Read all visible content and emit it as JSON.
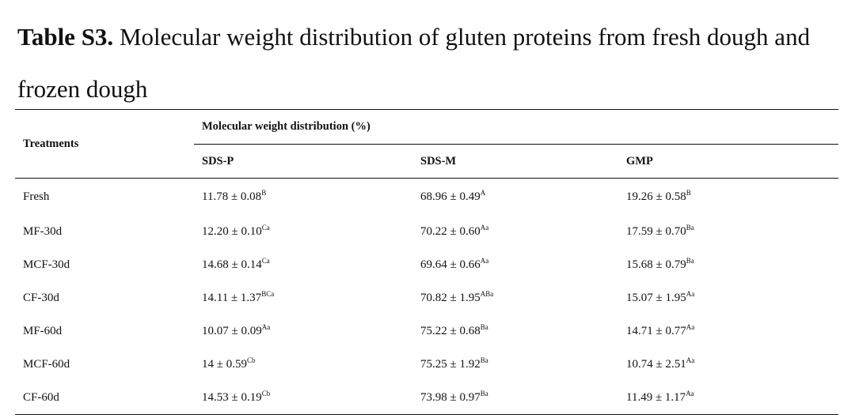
{
  "caption": {
    "label": "Table S3.",
    "text": " Molecular weight distribution of gluten proteins from fresh dough and frozen dough"
  },
  "table": {
    "row_header": "Treatments",
    "group_header": "Molecular weight distribution (%)",
    "columns": [
      "SDS-P",
      "SDS-M",
      "GMP"
    ],
    "rows": [
      {
        "treatment": "Fresh",
        "values": [
          {
            "value": "11.78 ± 0.08",
            "sup": "B"
          },
          {
            "value": "68.96 ± 0.49",
            "sup": "A"
          },
          {
            "value": "19.26 ± 0.58",
            "sup": "B"
          }
        ]
      },
      {
        "treatment": "MF-30d",
        "values": [
          {
            "value": "12.20 ± 0.10",
            "sup": "Ca"
          },
          {
            "value": "70.22 ± 0.60",
            "sup": "Aa"
          },
          {
            "value": "17.59 ± 0.70",
            "sup": "Ba"
          }
        ]
      },
      {
        "treatment": "MCF-30d",
        "values": [
          {
            "value": "14.68 ± 0.14",
            "sup": "Ca"
          },
          {
            "value": "69.64 ± 0.66",
            "sup": "Aa"
          },
          {
            "value": "15.68 ± 0.79",
            "sup": "Ba"
          }
        ]
      },
      {
        "treatment": "CF-30d",
        "values": [
          {
            "value": "14.11 ± 1.37",
            "sup": "BCa"
          },
          {
            "value": "70.82 ± 1.95",
            "sup": "ABa"
          },
          {
            "value": "15.07 ± 1.95",
            "sup": "Aa"
          }
        ]
      },
      {
        "treatment": "MF-60d",
        "values": [
          {
            "value": "10.07 ± 0.09",
            "sup": "Aa"
          },
          {
            "value": "75.22 ± 0.68",
            "sup": "Ba"
          },
          {
            "value": "14.71 ± 0.77",
            "sup": "Aa"
          }
        ]
      },
      {
        "treatment": "MCF-60d",
        "values": [
          {
            "value": "14 ± 0.59",
            "sup": "Cb"
          },
          {
            "value": "75.25 ± 1.92",
            "sup": "Ba"
          },
          {
            "value": "10.74 ± 2.51",
            "sup": "Aa"
          }
        ]
      },
      {
        "treatment": "CF-60d",
        "values": [
          {
            "value": "14.53 ± 0.19",
            "sup": "Cb"
          },
          {
            "value": "73.98 ± 0.97",
            "sup": "Ba"
          },
          {
            "value": "11.49 ± 1.17",
            "sup": "Aa"
          }
        ]
      }
    ]
  }
}
